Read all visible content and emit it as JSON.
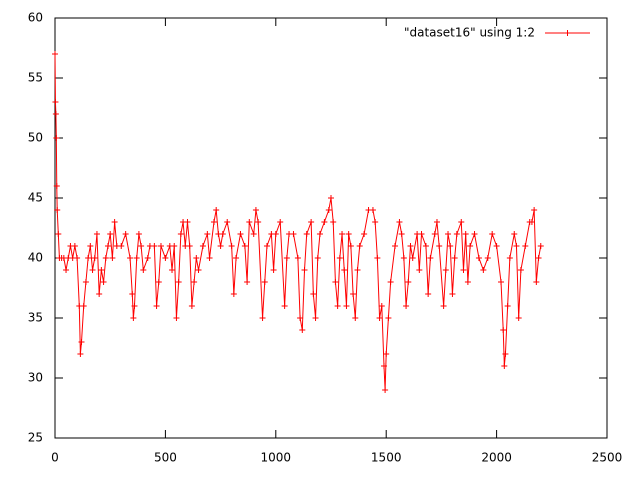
{
  "chart_data": {
    "type": "line",
    "series": [
      {
        "name": "\"dataset16\" using 1:2",
        "color": "#ff0000",
        "x": [
          0,
          2,
          4,
          6,
          8,
          10,
          15,
          20,
          30,
          40,
          50,
          60,
          70,
          80,
          90,
          100,
          110,
          115,
          120,
          130,
          140,
          150,
          160,
          170,
          180,
          190,
          200,
          210,
          220,
          230,
          240,
          250,
          260,
          270,
          280,
          300,
          320,
          340,
          350,
          355,
          360,
          370,
          380,
          390,
          400,
          420,
          430,
          450,
          460,
          470,
          480,
          500,
          520,
          530,
          540,
          550,
          560,
          570,
          580,
          590,
          600,
          610,
          620,
          630,
          640,
          650,
          670,
          690,
          700,
          720,
          730,
          740,
          750,
          760,
          780,
          800,
          810,
          820,
          840,
          860,
          870,
          880,
          900,
          910,
          920,
          940,
          950,
          960,
          980,
          990,
          1000,
          1020,
          1040,
          1050,
          1060,
          1080,
          1100,
          1110,
          1120,
          1130,
          1140,
          1160,
          1170,
          1180,
          1190,
          1200,
          1220,
          1240,
          1250,
          1260,
          1270,
          1280,
          1290,
          1300,
          1310,
          1320,
          1330,
          1340,
          1350,
          1360,
          1370,
          1380,
          1400,
          1420,
          1440,
          1450,
          1460,
          1470,
          1480,
          1490,
          1495,
          1500,
          1510,
          1520,
          1540,
          1560,
          1570,
          1580,
          1590,
          1600,
          1610,
          1620,
          1640,
          1650,
          1660,
          1680,
          1690,
          1700,
          1720,
          1730,
          1740,
          1760,
          1770,
          1780,
          1790,
          1800,
          1810,
          1820,
          1840,
          1850,
          1860,
          1870,
          1880,
          1900,
          1920,
          1940,
          1960,
          1980,
          2000,
          2020,
          2030,
          2035,
          2040,
          2050,
          2060,
          2080,
          2090,
          2100,
          2110,
          2130,
          2150,
          2160,
          2170,
          2180,
          2190,
          2200
        ],
        "values": [
          57,
          53,
          52,
          50,
          46,
          44,
          42,
          40,
          40,
          40,
          39,
          40,
          41,
          40,
          41,
          40,
          36,
          32,
          33,
          36,
          38,
          40,
          41,
          39,
          40,
          42,
          37,
          39,
          38,
          40,
          41,
          42,
          40,
          43,
          41,
          41,
          42,
          40,
          37,
          35,
          36,
          40,
          42,
          41,
          39,
          40,
          41,
          41,
          36,
          38,
          41,
          40,
          41,
          39,
          41,
          35,
          38,
          42,
          43,
          41,
          43,
          41,
          36,
          38,
          40,
          39,
          41,
          42,
          40,
          43,
          44,
          42,
          41,
          42,
          43,
          41,
          37,
          40,
          42,
          41,
          38,
          43,
          42,
          44,
          43,
          35,
          38,
          41,
          42,
          39,
          42,
          43,
          36,
          40,
          42,
          42,
          40,
          35,
          34,
          39,
          42,
          43,
          37,
          35,
          40,
          42,
          43,
          44,
          45,
          43,
          38,
          36,
          40,
          42,
          39,
          36,
          42,
          41,
          37,
          35,
          39,
          41,
          42,
          44,
          44,
          43,
          40,
          35,
          36,
          31,
          29,
          32,
          35,
          38,
          41,
          43,
          42,
          40,
          36,
          38,
          41,
          40,
          42,
          39,
          42,
          41,
          37,
          40,
          42,
          43,
          41,
          36,
          39,
          42,
          41,
          37,
          40,
          42,
          43,
          39,
          42,
          38,
          41,
          42,
          40,
          39,
          40,
          42,
          41,
          38,
          34,
          31,
          32,
          36,
          40,
          42,
          41,
          35,
          39,
          41,
          43,
          43,
          44,
          38,
          40,
          41
        ]
      }
    ],
    "xlim": [
      0,
      2500
    ],
    "xticks": [
      0,
      500,
      1000,
      1500,
      2000,
      2500
    ],
    "ylim": [
      25,
      60
    ],
    "yticks": [
      25,
      30,
      35,
      40,
      45,
      50,
      55,
      60
    ],
    "grid": false,
    "legend": "top-right"
  }
}
